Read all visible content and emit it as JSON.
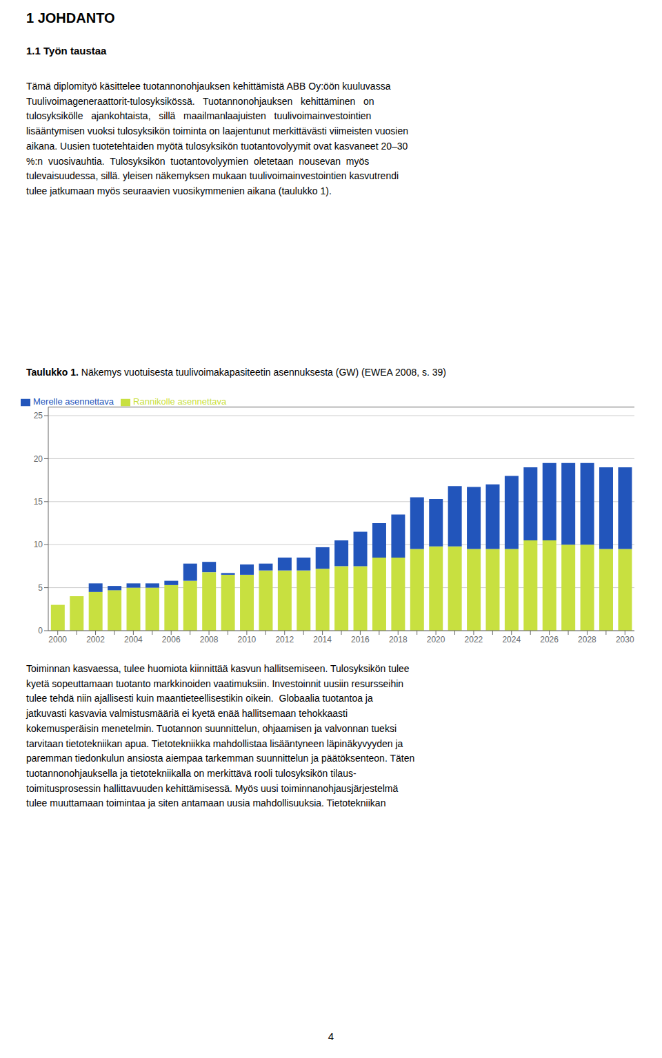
{
  "chart_data": {
    "type": "bar",
    "stacked": true,
    "title": "Taulukko 1. Näkemys vuotuisesta tuulivoimakapasiteetin asennuksesta (GW) (EWEA 2008, s. 39)",
    "categories": [
      "2000",
      null,
      "2002",
      null,
      "2004",
      null,
      "2006",
      null,
      "2008",
      null,
      "2010",
      null,
      "2012",
      null,
      "2014",
      null,
      "2016",
      null,
      "2018",
      null,
      "2020",
      null,
      "2022",
      null,
      "2024",
      null,
      "2026",
      null,
      "2028",
      null,
      "2030"
    ],
    "series": [
      {
        "name": "Rannikolle asennettava",
        "color": "#c8e040",
        "values": [
          3.0,
          4.0,
          4.5,
          4.7,
          5.0,
          5.0,
          5.3,
          5.8,
          6.8,
          6.5,
          6.5,
          7.0,
          7.0,
          7.0,
          7.2,
          7.5,
          7.5,
          8.5,
          8.5,
          9.5,
          9.8,
          9.8,
          9.5,
          9.5,
          9.5,
          10.5,
          10.5,
          10.0,
          10.0,
          9.5,
          9.5
        ]
      },
      {
        "name": "Merelle asennettava",
        "color": "#2255bb",
        "values": [
          0.0,
          0.0,
          1.0,
          0.5,
          0.5,
          0.5,
          0.5,
          2.0,
          1.2,
          0.2,
          1.2,
          0.8,
          1.5,
          1.5,
          2.5,
          3.0,
          4.0,
          4.0,
          5.0,
          6.0,
          5.5,
          7.0,
          7.2,
          7.5,
          8.5,
          8.5,
          9.0,
          9.5,
          9.5,
          9.5,
          9.5
        ]
      }
    ],
    "ylim": [
      0,
      26
    ],
    "yticks": [
      0,
      5,
      10,
      15,
      20,
      25
    ],
    "grid": true,
    "legend": "upper left",
    "annotations": [
      "1 JOHDANTO",
      "1.1 Työn taustaa",
      [
        "Tämä diplomityö käsittelee tuotannonohjauksen kehittämistä ABB Oy:öön kuuluvassa",
        "Tuulivoimageneraattorit-tulosyksikössä.   Tuotannonohjauksen   kehittäminen   on",
        "tulosyksikölle   ajankohtaista,   sillä   maailmanlaajuisten   tuulivoimainvestointien",
        "lisääntymisen vuoksi tulosyksikön toiminta on laajentunut merkittävästi viimeisten vuosien",
        "aikana. Uusien tuotetehtaiden myötä tulosyksikön tuotantovolyymit ovat kasvaneet 20–30",
        "%:n  vuosivauhtia.  Tulosyksikön  tuotantovolyymien  oletetaan  nousevan  myös",
        "tulevaisuudessa, sillä. yleisen näkemyksen mukaan tuulivoimainvestointien kasvutrendi",
        "tulee jatkumaan myös seuraavien vuosikymmenien aikana (taulukko 1)."
      ],
      [
        "Toiminnan kasvaessa, tulee huomiota kiinnittää kasvun hallitsemiseen. Tulosyksikön tulee",
        "kyetä sopeuttamaan tuotanto markkinoiden vaatimuksiin. Investoinnit uusiin resursseihin",
        "tulee tehdä niin ajallisesti kuin maantieteellisestikin oikein.  Globaalia tuotantoa ja",
        "jatkuvasti kasvavia valmistusmääriä ei kyetä enää hallitsemaan tehokkaasti",
        "kokemusperäisin menetelmin. Tuotannon suunnittelun, ohjaamisen ja valvonnan tueksi",
        "tarvitaan tietotekniikan apua. Tietotekniikka mahdollistaa lisääntyneen läpinäkyvyyden ja",
        "paremman tiedonkulun ansiosta aiempaa tarkemman suunnittelun ja päätöksenteon. Täten",
        "tuotannonohjauksella ja tietotekniikalla on merkittävä rooli tulosyksikön tilaus-",
        "toimitusprosessin hallittavuuden kehittämisessä. Myös uusi toiminnanohjausjärjestelmä",
        "tulee muuttamaan toimintaa ja siten antamaan uusia mahdollisuuksia. Tietotekniikan"
      ],
      "4"
    ]
  }
}
